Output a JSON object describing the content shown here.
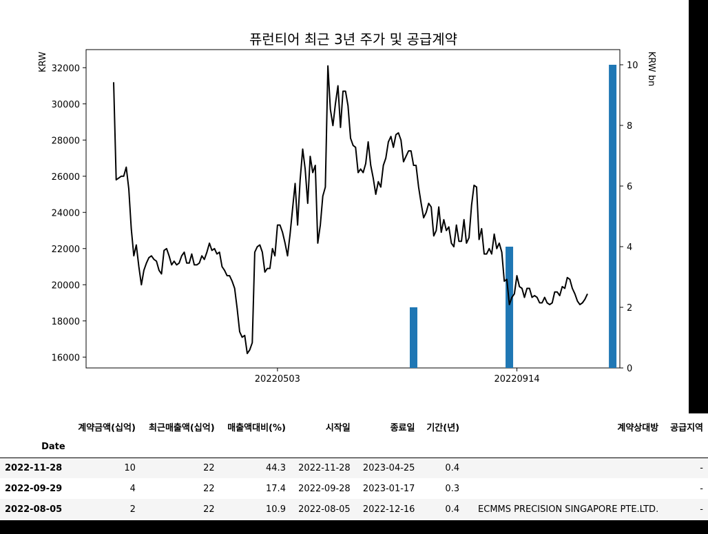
{
  "chart_data": {
    "type": "line+bar",
    "title": "퓨런티어 최근 3년 주가 및 공급계약",
    "ylabel_left": "KRW",
    "ylabel_right": "KRW bn",
    "left_ylim": [
      15400,
      33000
    ],
    "left_yticks": [
      16000,
      18000,
      20000,
      22000,
      24000,
      26000,
      28000,
      30000,
      32000
    ],
    "right_ylim": [
      0,
      10.5
    ],
    "right_yticks": [
      0,
      2,
      4,
      6,
      8,
      10
    ],
    "x_tick_labels": [
      {
        "label": "20220503",
        "index": 65
      },
      {
        "label": "20220914",
        "index": 160
      }
    ],
    "price_series_color": "#000000",
    "bar_color": "#1f77b4",
    "series": [
      {
        "kind": "line",
        "values": [
          31200,
          25800,
          25900,
          26000,
          26000,
          26500,
          25300,
          23100,
          21600,
          22200,
          21000,
          20000,
          20800,
          21200,
          21500,
          21600,
          21400,
          21300,
          20800,
          20600,
          21900,
          22000,
          21600,
          21100,
          21300,
          21100,
          21200,
          21600,
          21800,
          21200,
          21200,
          21700,
          21100,
          21100,
          21200,
          21600,
          21400,
          21800,
          22300,
          21900,
          22000,
          21700,
          21800,
          21000,
          20800,
          20500,
          20500,
          20200,
          19800,
          18700,
          17400,
          17100,
          17200,
          16200,
          16400,
          16800,
          21800,
          22100,
          22200,
          21800,
          20700,
          20900,
          20900,
          22000,
          21600,
          23300,
          23300,
          22900,
          22300,
          21600,
          22800,
          24200,
          25600,
          23300,
          25800,
          27500,
          26400,
          24500,
          27100,
          26200,
          26600,
          22300,
          23300,
          24900,
          25400,
          32100,
          29700,
          28800,
          30000,
          31000,
          28700,
          30700,
          30700,
          29900,
          28100,
          27700,
          27600,
          26200,
          26400,
          26200,
          26700,
          27900,
          26600,
          25900,
          25000,
          25700,
          25400,
          26600,
          27000,
          27900,
          28200,
          27600,
          28300,
          28400,
          28000,
          26800,
          27100,
          27400,
          27400,
          26600,
          26600,
          25400,
          24500,
          23700,
          24000,
          24500,
          24300,
          22700,
          23000,
          24300,
          22900,
          23600,
          23000,
          23200,
          22300,
          22100,
          23300,
          22400,
          22400,
          23600,
          22300,
          22600,
          24400,
          25500,
          25400,
          22500,
          23100,
          21700,
          21700,
          22000,
          21700,
          22800,
          22000,
          22300,
          21800,
          20200,
          20300,
          18900,
          19300,
          19500,
          20500,
          19900,
          19800,
          19300,
          19800,
          19800,
          19300,
          19400,
          19300,
          19000,
          19000,
          19300,
          19000,
          18900,
          19000,
          19600,
          19600,
          19400,
          19900,
          19800,
          20400,
          20300,
          19800,
          19500,
          19100,
          18900,
          19000,
          19200,
          19500
        ]
      },
      {
        "kind": "bar",
        "name": "공급계약",
        "points": [
          {
            "index": 119,
            "value": 2
          },
          {
            "index": 157,
            "value": 4
          },
          {
            "index": 198,
            "value": 10
          }
        ]
      }
    ]
  },
  "table": {
    "columns": [
      "계약금액(십억)",
      "최근매출액(십억)",
      "매출액대비(%)",
      "시작일",
      "종료일",
      "기간(년)",
      "계약상대방",
      "공급지역"
    ],
    "index_name": "Date",
    "rows": [
      {
        "date": "2022-11-28",
        "cells": [
          "10",
          "22",
          "44.3",
          "2022-11-28",
          "2023-04-25",
          "0.4",
          "",
          "-"
        ]
      },
      {
        "date": "2022-09-29",
        "cells": [
          "4",
          "22",
          "17.4",
          "2022-09-28",
          "2023-01-17",
          "0.3",
          "",
          "-"
        ]
      },
      {
        "date": "2022-08-05",
        "cells": [
          "2",
          "22",
          "10.9",
          "2022-08-05",
          "2022-12-16",
          "0.4",
          "ECMMS PRECISION SINGAPORE PTE.LTD.",
          "-"
        ]
      }
    ]
  }
}
